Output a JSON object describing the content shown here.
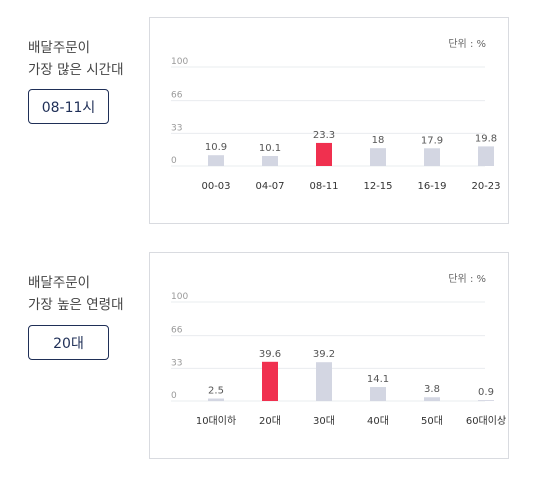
{
  "colors": {
    "highlight": "#f0304f",
    "bar": "#d3d6e2",
    "grid": "#eaecef"
  },
  "sections": [
    {
      "side_label": "배달주문이\n가장 많은 시간대",
      "highlight_box": "08-11시",
      "unit_label": "단위 : %"
    },
    {
      "side_label": "배달주문이\n가장 높은 연령대",
      "highlight_box": "20대",
      "unit_label": "단위 : %"
    }
  ],
  "chart_data": [
    {
      "type": "bar",
      "categories": [
        "00-03",
        "04-07",
        "08-11",
        "12-15",
        "16-19",
        "20-23"
      ],
      "values": [
        10.9,
        10.1,
        23.3,
        18,
        17.9,
        19.8
      ],
      "highlight_index": 2,
      "yticks": [
        0,
        33,
        66,
        100
      ],
      "ylim": [
        0,
        100
      ],
      "grid": true
    },
    {
      "type": "bar",
      "categories": [
        "10대이하",
        "20대",
        "30대",
        "40대",
        "50대",
        "60대이상"
      ],
      "values": [
        2.5,
        39.6,
        39.2,
        14.1,
        3.8,
        0.9
      ],
      "highlight_index": 1,
      "yticks": [
        0,
        33,
        66,
        100
      ],
      "ylim": [
        0,
        100
      ],
      "grid": true
    }
  ]
}
